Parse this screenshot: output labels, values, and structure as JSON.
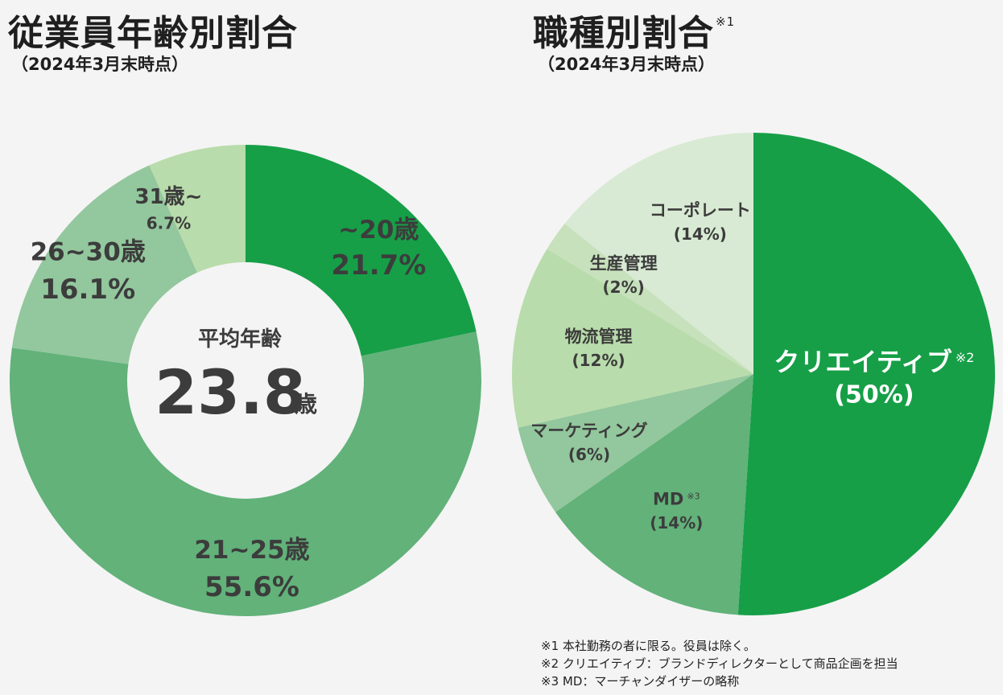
{
  "left_chart": {
    "title": "従業員年齢別割合",
    "subtitle": "（2024年3月末時点）",
    "center_label": "平均年齢",
    "center_value": "23.8",
    "center_unit": "歳"
  },
  "right_chart": {
    "title": "職種別割合",
    "title_note": "※1",
    "subtitle": "（2024年3月末時点）"
  },
  "notes": [
    "※1 本社勤務の者に限る。役員は除く。",
    "※2 クリエイティブ：ブランドディレクターとして商品企画を担当",
    "※3 MD：マーチャンダイザーの略称"
  ],
  "colors": {
    "green_dark": "#169f47",
    "green_mid": "#62b27a",
    "green_light": "#93c79d",
    "green_pale": "#b8dcab",
    "green_palest": "#d8ead3",
    "label_dark": "#3c3c3c",
    "label_white": "#ffffff"
  },
  "chart_data": [
    {
      "type": "pie",
      "title": "従業員年齢別割合",
      "categories": [
        "~20歳",
        "21~25歳",
        "26~30歳",
        "31歳~"
      ],
      "values": [
        21.7,
        55.6,
        16.1,
        6.7
      ],
      "value_labels": [
        "21.7%",
        "55.6%",
        "16.1%",
        "6.7%"
      ],
      "colors": [
        "#169f47",
        "#62b27a",
        "#93c79d",
        "#b8dcab"
      ]
    },
    {
      "type": "pie",
      "title": "職種別割合",
      "categories": [
        "クリエイティブ",
        "MD",
        "マーケティング",
        "物流管理",
        "生産管理",
        "コーポレート"
      ],
      "category_notes": [
        "※2",
        "※3",
        "",
        "",
        "",
        ""
      ],
      "values": [
        50,
        14,
        6,
        12,
        2,
        14
      ],
      "value_labels": [
        "(50%)",
        "(14%)",
        "(6%)",
        "(12%)",
        "(2%)",
        "(14%)"
      ],
      "colors": [
        "#169f47",
        "#62b27a",
        "#93c79d",
        "#b8dcab",
        "#c6e1bb",
        "#d8ead3"
      ]
    }
  ]
}
